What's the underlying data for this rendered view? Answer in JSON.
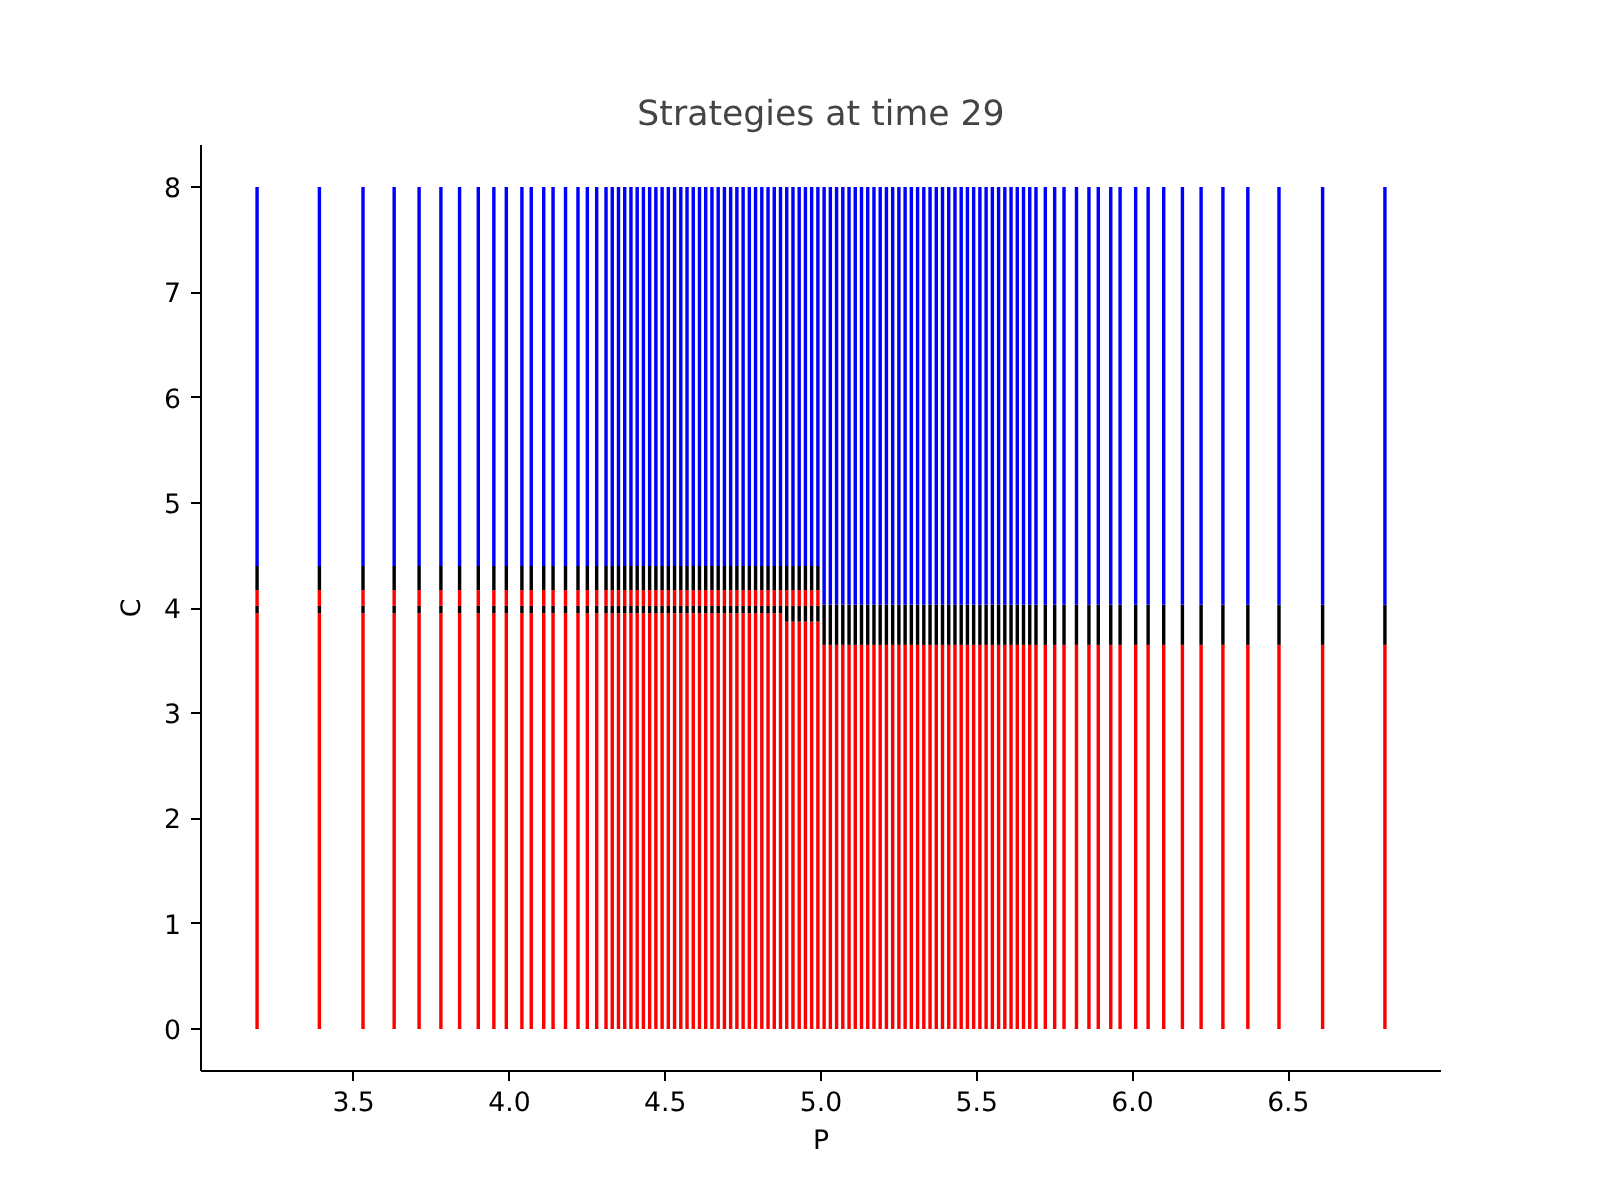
{
  "chart_data": {
    "type": "bar",
    "stacked": true,
    "title": "Strategies at time 29",
    "xlabel": "P",
    "ylabel": "C",
    "x": [
      3.19,
      3.39,
      3.53,
      3.63,
      3.71,
      3.78,
      3.84,
      3.9,
      3.95,
      3.99,
      4.04,
      4.07,
      4.11,
      4.14,
      4.18,
      4.22,
      4.25,
      4.28,
      4.31,
      4.33,
      4.35,
      4.37,
      4.39,
      4.41,
      4.43,
      4.45,
      4.47,
      4.49,
      4.51,
      4.53,
      4.55,
      4.57,
      4.59,
      4.61,
      4.63,
      4.65,
      4.67,
      4.69,
      4.71,
      4.73,
      4.75,
      4.77,
      4.79,
      4.81,
      4.83,
      4.85,
      4.87,
      4.89,
      4.91,
      4.93,
      4.95,
      4.97,
      4.99,
      5.01,
      5.03,
      5.05,
      5.07,
      5.09,
      5.11,
      5.13,
      5.15,
      5.17,
      5.19,
      5.21,
      5.23,
      5.25,
      5.27,
      5.29,
      5.31,
      5.33,
      5.35,
      5.37,
      5.39,
      5.41,
      5.43,
      5.45,
      5.47,
      5.49,
      5.51,
      5.53,
      5.55,
      5.57,
      5.59,
      5.61,
      5.63,
      5.65,
      5.67,
      5.69,
      5.72,
      5.75,
      5.78,
      5.82,
      5.86,
      5.89,
      5.93,
      5.96,
      6.01,
      6.05,
      6.1,
      6.16,
      6.22,
      6.29,
      6.37,
      6.47,
      6.61,
      6.81
    ],
    "series": [
      {
        "color": "#ff0000",
        "values": [
          3.95,
          3.95,
          3.95,
          3.95,
          3.95,
          3.95,
          3.95,
          3.95,
          3.95,
          3.95,
          3.95,
          3.95,
          3.95,
          3.95,
          3.95,
          3.95,
          3.95,
          3.95,
          3.95,
          3.95,
          3.95,
          3.95,
          3.95,
          3.95,
          3.95,
          3.95,
          3.95,
          3.95,
          3.95,
          3.95,
          3.95,
          3.95,
          3.95,
          3.95,
          3.95,
          3.95,
          3.95,
          3.95,
          3.95,
          3.95,
          3.95,
          3.95,
          3.95,
          3.95,
          3.95,
          3.95,
          3.95,
          3.87,
          3.87,
          3.87,
          3.87,
          3.87,
          3.87,
          3.65,
          3.65,
          3.65,
          3.65,
          3.65,
          3.65,
          3.65,
          3.65,
          3.65,
          3.65,
          3.65,
          3.65,
          3.65,
          3.65,
          3.65,
          3.65,
          3.65,
          3.65,
          3.65,
          3.65,
          3.65,
          3.65,
          3.65,
          3.65,
          3.65,
          3.65,
          3.65,
          3.65,
          3.65,
          3.65,
          3.65,
          3.65,
          3.65,
          3.65,
          3.65,
          3.65,
          3.65,
          3.65,
          3.65,
          3.65,
          3.65,
          3.65,
          3.65,
          3.65,
          3.65,
          3.65,
          3.65,
          3.65,
          3.65,
          3.65,
          3.65,
          3.65,
          3.65
        ]
      },
      {
        "color": "#000000",
        "values": [
          0.07,
          0.07,
          0.07,
          0.07,
          0.07,
          0.07,
          0.07,
          0.07,
          0.07,
          0.07,
          0.07,
          0.07,
          0.07,
          0.07,
          0.07,
          0.07,
          0.07,
          0.07,
          0.07,
          0.07,
          0.07,
          0.07,
          0.07,
          0.07,
          0.07,
          0.07,
          0.07,
          0.07,
          0.07,
          0.07,
          0.07,
          0.07,
          0.07,
          0.07,
          0.07,
          0.07,
          0.07,
          0.07,
          0.07,
          0.07,
          0.07,
          0.07,
          0.07,
          0.07,
          0.07,
          0.07,
          0.07,
          0.15,
          0.15,
          0.15,
          0.15,
          0.15,
          0.15,
          0.38,
          0.38,
          0.38,
          0.38,
          0.38,
          0.38,
          0.38,
          0.38,
          0.38,
          0.38,
          0.38,
          0.38,
          0.38,
          0.38,
          0.38,
          0.38,
          0.38,
          0.38,
          0.38,
          0.38,
          0.38,
          0.38,
          0.38,
          0.38,
          0.38,
          0.38,
          0.38,
          0.38,
          0.38,
          0.38,
          0.38,
          0.38,
          0.38,
          0.38,
          0.38,
          0.38,
          0.38,
          0.38,
          0.38,
          0.38,
          0.38,
          0.38,
          0.38,
          0.38,
          0.38,
          0.38,
          0.38,
          0.38,
          0.38,
          0.38,
          0.38,
          0.38,
          0.38
        ]
      },
      {
        "color": "#ff0000",
        "values": [
          0.15,
          0.15,
          0.15,
          0.15,
          0.15,
          0.15,
          0.15,
          0.15,
          0.15,
          0.15,
          0.15,
          0.15,
          0.15,
          0.15,
          0.15,
          0.15,
          0.15,
          0.15,
          0.15,
          0.15,
          0.15,
          0.15,
          0.15,
          0.15,
          0.15,
          0.15,
          0.15,
          0.15,
          0.15,
          0.15,
          0.15,
          0.15,
          0.15,
          0.15,
          0.15,
          0.15,
          0.15,
          0.15,
          0.15,
          0.15,
          0.15,
          0.15,
          0.15,
          0.15,
          0.15,
          0.15,
          0.15,
          0.15,
          0.15,
          0.15,
          0.15,
          0.15,
          0.15,
          null,
          null,
          null,
          null,
          null,
          null,
          null,
          null,
          null,
          null,
          null,
          null,
          null,
          null,
          null,
          null,
          null,
          null,
          null,
          null,
          null,
          null,
          null,
          null,
          null,
          null,
          null,
          null,
          null,
          null,
          null,
          null,
          null,
          null,
          null,
          null,
          null,
          null,
          null,
          null,
          null,
          null,
          null,
          null,
          null,
          null,
          null,
          null,
          null,
          null,
          null,
          null,
          null
        ]
      },
      {
        "color": "#000000",
        "values": [
          0.23,
          0.23,
          0.23,
          0.23,
          0.23,
          0.23,
          0.23,
          0.23,
          0.23,
          0.23,
          0.23,
          0.23,
          0.23,
          0.23,
          0.23,
          0.23,
          0.23,
          0.23,
          0.23,
          0.23,
          0.23,
          0.23,
          0.23,
          0.23,
          0.23,
          0.23,
          0.23,
          0.23,
          0.23,
          0.23,
          0.23,
          0.23,
          0.23,
          0.23,
          0.23,
          0.23,
          0.23,
          0.23,
          0.23,
          0.23,
          0.23,
          0.23,
          0.23,
          0.23,
          0.23,
          0.23,
          0.23,
          0.23,
          0.23,
          0.23,
          0.23,
          0.23,
          0.23,
          null,
          null,
          null,
          null,
          null,
          null,
          null,
          null,
          null,
          null,
          null,
          null,
          null,
          null,
          null,
          null,
          null,
          null,
          null,
          null,
          null,
          null,
          null,
          null,
          null,
          null,
          null,
          null,
          null,
          null,
          null,
          null,
          null,
          null,
          null,
          null,
          null,
          null,
          null,
          null,
          null,
          null,
          null,
          null,
          null,
          null,
          null,
          null,
          null,
          null,
          null,
          null,
          null
        ]
      },
      {
        "color": "#0000ff",
        "values": [
          3.6,
          3.6,
          3.6,
          3.6,
          3.6,
          3.6,
          3.6,
          3.6,
          3.6,
          3.6,
          3.6,
          3.6,
          3.6,
          3.6,
          3.6,
          3.6,
          3.6,
          3.6,
          3.6,
          3.6,
          3.6,
          3.6,
          3.6,
          3.6,
          3.6,
          3.6,
          3.6,
          3.6,
          3.6,
          3.6,
          3.6,
          3.6,
          3.6,
          3.6,
          3.6,
          3.6,
          3.6,
          3.6,
          3.6,
          3.6,
          3.6,
          3.6,
          3.6,
          3.6,
          3.6,
          3.6,
          3.6,
          3.6,
          3.6,
          3.6,
          3.6,
          3.6,
          3.6,
          3.97,
          3.97,
          3.97,
          3.97,
          3.97,
          3.97,
          3.97,
          3.97,
          3.97,
          3.97,
          3.97,
          3.97,
          3.97,
          3.97,
          3.97,
          3.97,
          3.97,
          3.97,
          3.97,
          3.97,
          3.97,
          3.97,
          3.97,
          3.97,
          3.97,
          3.97,
          3.97,
          3.97,
          3.97,
          3.97,
          3.97,
          3.97,
          3.97,
          3.97,
          3.97,
          3.97,
          3.97,
          3.97,
          3.97,
          3.97,
          3.97,
          3.97,
          3.97,
          3.97,
          3.97,
          3.97,
          3.97,
          3.97,
          3.97,
          3.97,
          3.97,
          3.97,
          3.97
        ]
      }
    ],
    "xlim": [
      3.01,
      6.99
    ],
    "xticks": [
      3.5,
      {
        "value": 4,
        "label": "4.0"
      },
      4.5,
      {
        "value": 5,
        "label": "5.0"
      },
      5.5,
      {
        "value": 6,
        "label": "6.0"
      },
      6.5
    ],
    "ylim": [
      -0.4,
      8.4
    ],
    "yticks": [
      0,
      1,
      2,
      3,
      4,
      5,
      6,
      7,
      8
    ]
  }
}
